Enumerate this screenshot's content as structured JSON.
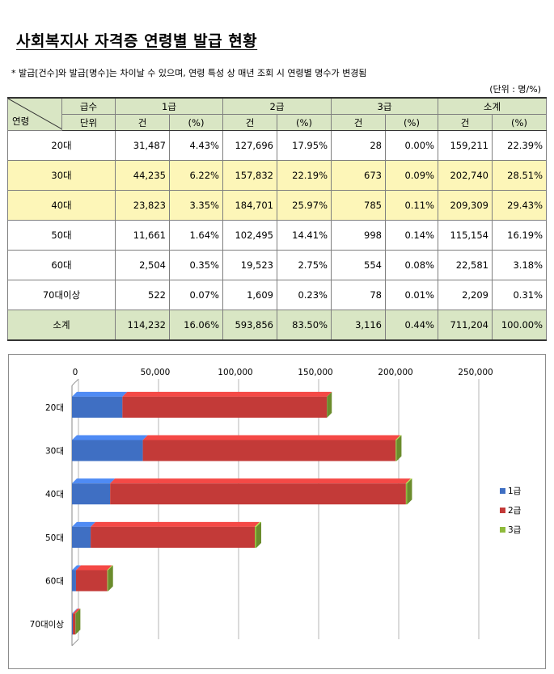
{
  "title": "사회복지사 자격증 연령별 발급 현황",
  "note": "* 발급[건수]와 발급[명수]는 차이날 수 있으며, 연령 특성 상 매년 조회 시 연령별 명수가 변경됨",
  "unit": "(단위 : 명/%)",
  "table": {
    "corner_top": "급수",
    "corner_bottom_left": "연령",
    "corner_bottom_right": "단위",
    "groups": [
      "1급",
      "2급",
      "3급",
      "소계"
    ],
    "subheaders": [
      "건",
      "(%)",
      "건",
      "(%)",
      "건",
      "(%)",
      "건",
      "(%)"
    ],
    "rows": [
      {
        "age": "20대",
        "cells": [
          "31,487",
          "4.43%",
          "127,696",
          "17.95%",
          "28",
          "0.00%",
          "159,211",
          "22.39%"
        ]
      },
      {
        "age": "30대",
        "cells": [
          "44,235",
          "6.22%",
          "157,832",
          "22.19%",
          "673",
          "0.09%",
          "202,740",
          "28.51%"
        ]
      },
      {
        "age": "40대",
        "cells": [
          "23,823",
          "3.35%",
          "184,701",
          "25.97%",
          "785",
          "0.11%",
          "209,309",
          "29.43%"
        ]
      },
      {
        "age": "50대",
        "cells": [
          "11,661",
          "1.64%",
          "102,495",
          "14.41%",
          "998",
          "0.14%",
          "115,154",
          "16.19%"
        ]
      },
      {
        "age": "60대",
        "cells": [
          "2,504",
          "0.35%",
          "19,523",
          "2.75%",
          "554",
          "0.08%",
          "22,581",
          "3.18%"
        ]
      },
      {
        "age": "70대이상",
        "cells": [
          "522",
          "0.07%",
          "1,609",
          "0.23%",
          "78",
          "0.01%",
          "2,209",
          "0.31%"
        ]
      }
    ],
    "total": {
      "label": "소계",
      "cells": [
        "114,232",
        "16.06%",
        "593,856",
        "83.50%",
        "3,116",
        "0.44%",
        "711,204",
        "100.00%"
      ]
    }
  },
  "chart_data": {
    "type": "bar",
    "orientation": "horizontal",
    "stacked": true,
    "categories": [
      "20대",
      "30대",
      "40대",
      "50대",
      "60대",
      "70대이상"
    ],
    "series": [
      {
        "name": "1급",
        "color": "#3f6fc3",
        "values": [
          31487,
          44235,
          23823,
          11661,
          2504,
          522
        ]
      },
      {
        "name": "2급",
        "color": "#c33a38",
        "values": [
          127696,
          157832,
          184701,
          102495,
          19523,
          1609
        ]
      },
      {
        "name": "3급",
        "color": "#8fbb3c",
        "values": [
          28,
          673,
          785,
          998,
          554,
          78
        ]
      }
    ],
    "xlim": [
      0,
      250000
    ],
    "xticks": [
      "0",
      "50,000",
      "100,000",
      "150,000",
      "200,000",
      "250,000"
    ],
    "xaxis_position": "top",
    "grid": true,
    "legend": "right"
  }
}
